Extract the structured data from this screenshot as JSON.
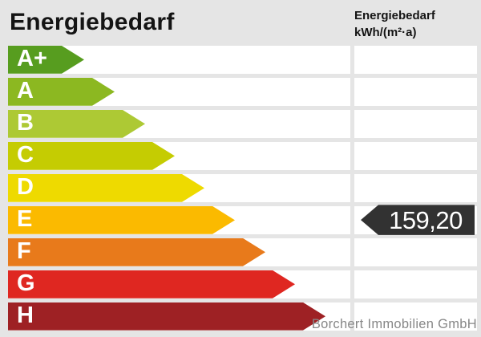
{
  "header": {
    "title": "Energiebedarf",
    "unit_line1": "Energiebedarf",
    "unit_line2": "kWh/(m²·a)"
  },
  "scale": {
    "bands": [
      {
        "label": "A+",
        "color": "#579d1f",
        "arrow_width": 95
      },
      {
        "label": "A",
        "color": "#8cb821",
        "arrow_width": 133
      },
      {
        "label": "B",
        "color": "#adc934",
        "arrow_width": 171
      },
      {
        "label": "C",
        "color": "#c5cc02",
        "arrow_width": 208
      },
      {
        "label": "D",
        "color": "#eeda00",
        "arrow_width": 245
      },
      {
        "label": "E",
        "color": "#fbba00",
        "arrow_width": 283
      },
      {
        "label": "F",
        "color": "#e87a1b",
        "arrow_width": 321
      },
      {
        "label": "G",
        "color": "#df2721",
        "arrow_width": 358
      },
      {
        "label": "H",
        "color": "#9e2124",
        "arrow_width": 396
      }
    ]
  },
  "value_marker": {
    "value": "159,20",
    "band": "E",
    "color": "#323232"
  },
  "footer": {
    "company": "Borchert Immobilien GmbH"
  },
  "colors": {
    "background": "#e5e5e5",
    "row_background": "#ffffff"
  },
  "chart_data": {
    "type": "bar",
    "title": "Energiebedarf",
    "unit": "kWh/(m²·a)",
    "categories": [
      "A+",
      "A",
      "B",
      "C",
      "D",
      "E",
      "F",
      "G",
      "H"
    ],
    "series": [
      {
        "name": "scale-ramp-arrow-width-px",
        "values": [
          95,
          133,
          171,
          208,
          245,
          283,
          321,
          358,
          396
        ]
      }
    ],
    "band_colors": [
      "#579d1f",
      "#8cb821",
      "#adc934",
      "#c5cc02",
      "#eeda00",
      "#fbba00",
      "#e87a1b",
      "#df2721",
      "#9e2124"
    ],
    "marked_value": 159.2,
    "marked_value_label": "159,20",
    "marked_band": "E",
    "legend": "none",
    "annotation": "Borchert Immobilien GmbH"
  }
}
